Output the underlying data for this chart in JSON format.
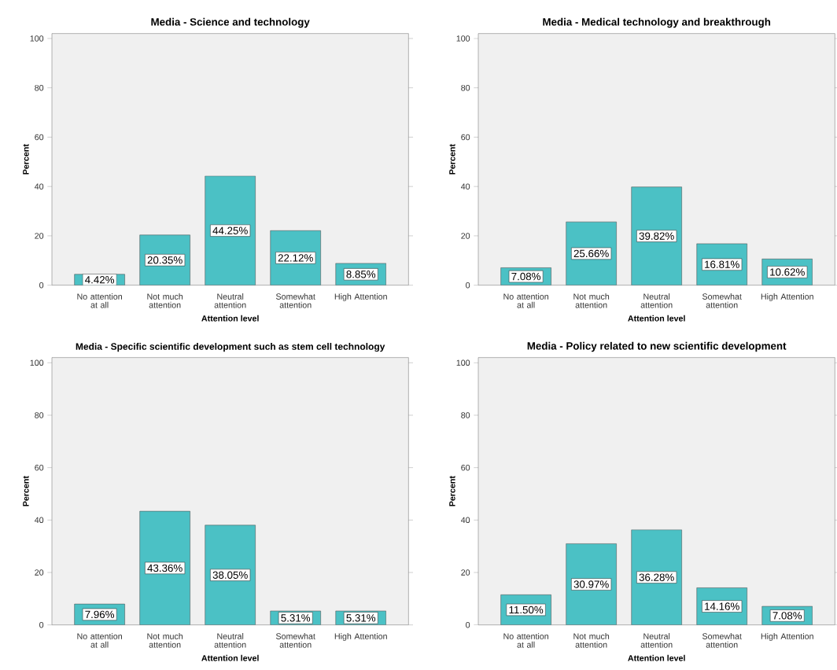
{
  "chart_data": [
    {
      "type": "bar",
      "title": "Media - Science and technology",
      "xlabel": "Attention level",
      "ylabel": "Percent",
      "categories": [
        "No attention at all",
        "Not much attention",
        "Neutral attention",
        "Somewhat attention",
        "High Attention"
      ],
      "values": [
        4.42,
        20.35,
        44.25,
        22.12,
        8.85
      ],
      "value_labels": [
        "4.42%",
        "20.35%",
        "44.25%",
        "22.12%",
        "8.85%"
      ],
      "color": "#4bc1c5",
      "ylim": [
        0,
        102
      ],
      "yticks": [
        0,
        20,
        40,
        60,
        80,
        100
      ]
    },
    {
      "type": "bar",
      "title": "Media - Medical technology and breakthrough",
      "xlabel": "Attention level",
      "ylabel": "Percent",
      "categories": [
        "No attention at all",
        "Not much attention",
        "Neutral attention",
        "Somewhat attention",
        "High Attention"
      ],
      "values": [
        7.08,
        25.66,
        39.82,
        16.81,
        10.62
      ],
      "value_labels": [
        "7.08%",
        "25.66%",
        "39.82%",
        "16.81%",
        "10.62%"
      ],
      "color": "#4bc1c5",
      "ylim": [
        0,
        102
      ],
      "yticks": [
        0,
        20,
        40,
        60,
        80,
        100
      ]
    },
    {
      "type": "bar",
      "title": "Media - Specific scientific development such as stem cell technology",
      "xlabel": "Attention level",
      "ylabel": "Percent",
      "categories": [
        "No attention at all",
        "Not much attention",
        "Neutral attention",
        "Somewhat attention",
        "High Attention"
      ],
      "values": [
        7.96,
        43.36,
        38.05,
        5.31,
        5.31
      ],
      "value_labels": [
        "7.96%",
        "43.36%",
        "38.05%",
        "5.31%",
        "5.31%"
      ],
      "color": "#4bc1c5",
      "ylim": [
        0,
        102
      ],
      "yticks": [
        0,
        20,
        40,
        60,
        80,
        100
      ]
    },
    {
      "type": "bar",
      "title": "Media - Policy related to new scientific development",
      "xlabel": "Attention level",
      "ylabel": "Percent",
      "categories": [
        "No attention at all",
        "Not much attention",
        "Neutral attention",
        "Somewhat attention",
        "High Attention"
      ],
      "values": [
        11.5,
        30.97,
        36.28,
        14.16,
        7.08
      ],
      "value_labels": [
        "11.50%",
        "30.97%",
        "36.28%",
        "14.16%",
        "7.08%"
      ],
      "color": "#4bc1c5",
      "ylim": [
        0,
        102
      ],
      "yticks": [
        0,
        20,
        40,
        60,
        80,
        100
      ]
    }
  ]
}
